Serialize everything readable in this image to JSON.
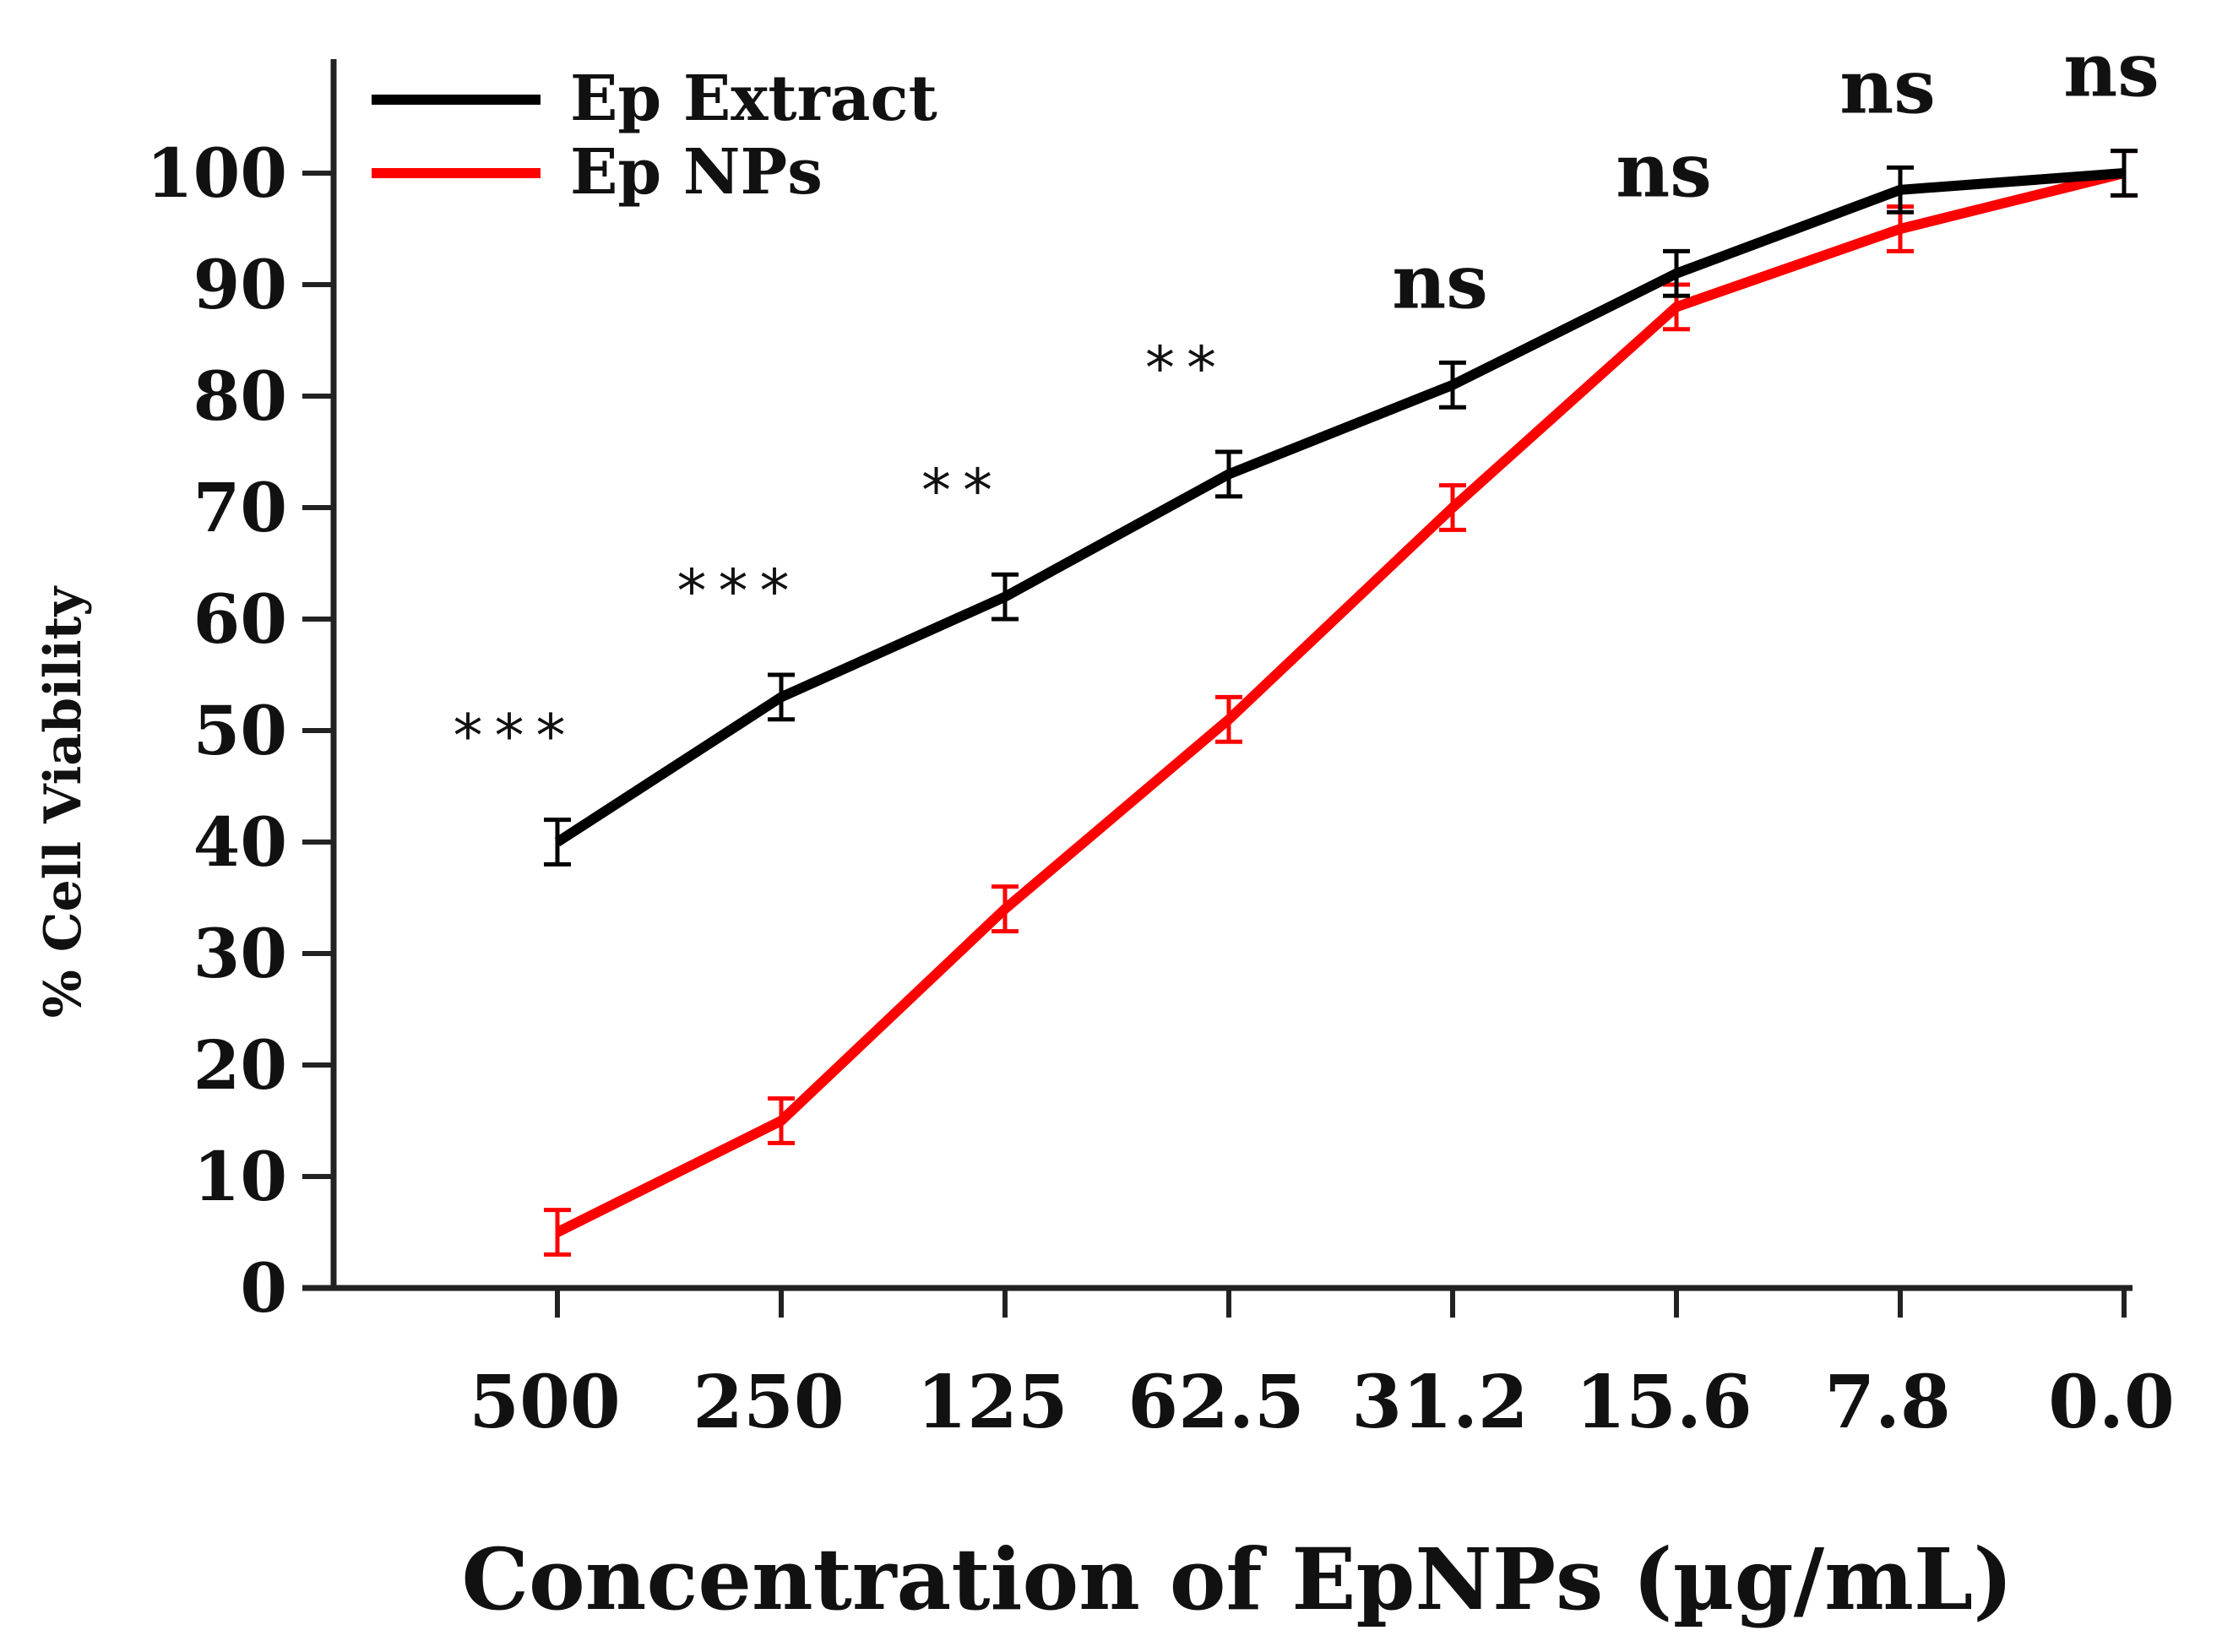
{
  "chart_data": {
    "type": "line",
    "title": "",
    "xlabel": "Concentration of EpNPs (µg/mL)",
    "ylabel": "% Cell Viability",
    "categories": [
      "500",
      "250",
      "125",
      "62.5",
      "31.2",
      "15.6",
      "7.8",
      "0.0"
    ],
    "ylim": [
      0,
      110
    ],
    "yticks": [
      "0",
      "10",
      "20",
      "30",
      "40",
      "50",
      "60",
      "70",
      "80",
      "90",
      "100"
    ],
    "legend_position": "top-left",
    "series": [
      {
        "name": "Ep Extract",
        "color": "#000000",
        "values": [
          40,
          53,
          62,
          73,
          81,
          91,
          98.5,
          100
        ],
        "errors": [
          2,
          2,
          2,
          2,
          2,
          2,
          2,
          2
        ]
      },
      {
        "name": "Ep NPs",
        "color": "#ff0000",
        "values": [
          5,
          15,
          34,
          51,
          70,
          88,
          95,
          100
        ],
        "errors": [
          2,
          2,
          2,
          2,
          2,
          2,
          2,
          2
        ]
      }
    ],
    "significance": [
      "***",
      "***",
      "**",
      "**",
      "ns",
      "ns",
      "ns",
      "ns"
    ]
  }
}
